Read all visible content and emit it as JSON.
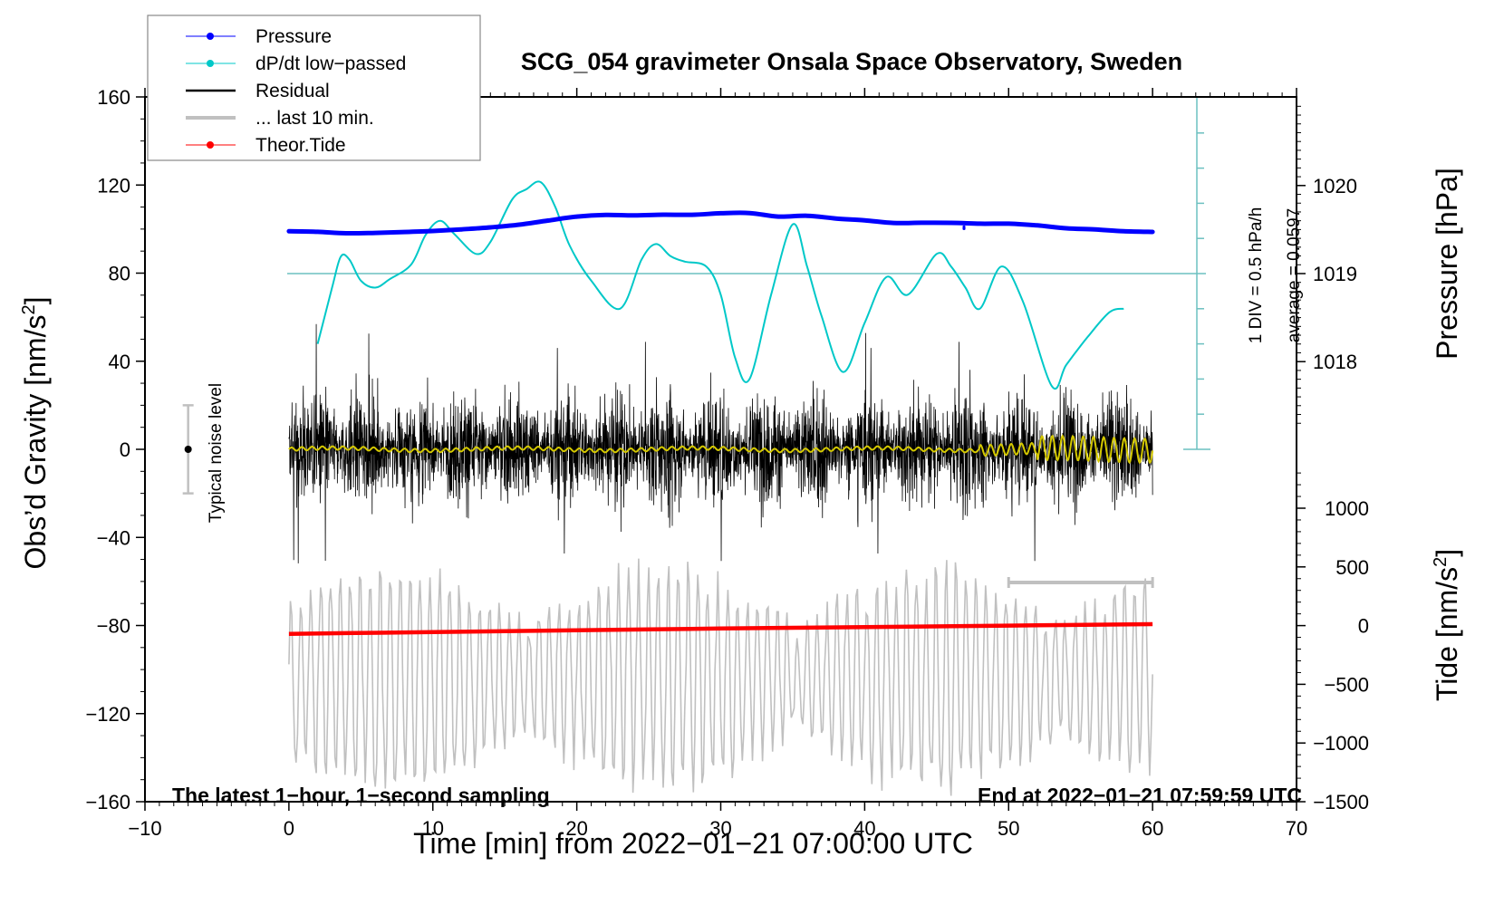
{
  "chart_data": {
    "type": "line",
    "title": "SCG_054 gravimeter Onsala Space Observatory, Sweden",
    "xlabel": "Time [min] from 2022−01−21 07:00:00 UTC",
    "ylabel_left": "Obs’d Gravity [nm/s²]",
    "ylabel_right_top": "Pressure [hPa]",
    "ylabel_right_bottom": "Tide [nm/s²]",
    "xlim": [
      -10,
      70
    ],
    "ylim_left": [
      -160,
      160
    ],
    "ylim_pressure": [
      1017.3,
      1021.0
    ],
    "ylim_tide": [
      -1500,
      1500
    ],
    "x_ticks": [
      "−10",
      "0",
      "10",
      "20",
      "30",
      "40",
      "50",
      "60",
      "70"
    ],
    "x_tick_values": [
      -10,
      0,
      10,
      20,
      30,
      40,
      50,
      60,
      70
    ],
    "y_left_ticks": [
      "160",
      "120",
      "80",
      "40",
      "0",
      "−40",
      "−80",
      "−120",
      "−160"
    ],
    "y_left_tick_values": [
      160,
      120,
      80,
      40,
      0,
      -40,
      -80,
      -120,
      -160
    ],
    "y_pressure_ticks": [
      "1020",
      "1019",
      "1018"
    ],
    "y_pressure_tick_values": [
      1020,
      1019,
      1018
    ],
    "y_tide_ticks": [
      "1000",
      "500",
      "0",
      "−500",
      "−1000",
      "−1500"
    ],
    "y_tide_tick_values": [
      1000,
      500,
      0,
      -500,
      -1000,
      -1500
    ],
    "legend": {
      "placement": "top-left",
      "entries": [
        {
          "label": "Pressure",
          "color": "#0000ff",
          "style": "line-dot"
        },
        {
          "label": "dP/dt low−passed",
          "color": "#00c8c8",
          "style": "line-dot"
        },
        {
          "label": "Residual",
          "color": "#000000",
          "style": "line"
        },
        {
          "label": "... last 10 min.",
          "color": "#c0c0c0",
          "style": "line"
        },
        {
          "label": "Theor.Tide",
          "color": "#ff0000",
          "style": "line-dot"
        }
      ]
    },
    "annotations": {
      "bottom_left": "The latest 1−hour, 1−second sampling",
      "bottom_right": "End at 2022−01−21 07:59:59 UTC",
      "noise_label": "Typical noise level",
      "noise_level": {
        "x": -7,
        "center": 0,
        "half_range": 20
      },
      "dpdt_scale": "1 DIV = 0.5 hPa/h",
      "dpdt_average": "average = 0.0597"
    },
    "dpdt_axis": {
      "div_hPa_per_h": 0.5,
      "zero_pressure_equiv": 1019,
      "divisions_above": 5,
      "divisions_below": 5
    },
    "series": [
      {
        "name": "Pressure",
        "axis": "pressure",
        "color": "#0000ff",
        "x": [
          0,
          2,
          4,
          6,
          8,
          10,
          12,
          14,
          16,
          18,
          20,
          22,
          24,
          26,
          28,
          30,
          32,
          34,
          36,
          38,
          40,
          42,
          44,
          46,
          48,
          50,
          52,
          54,
          56,
          58,
          60
        ],
        "y": [
          1019.48,
          1019.48,
          1019.45,
          1019.46,
          1019.47,
          1019.48,
          1019.5,
          1019.53,
          1019.56,
          1019.6,
          1019.65,
          1019.66,
          1019.66,
          1019.67,
          1019.67,
          1019.68,
          1019.68,
          1019.64,
          1019.66,
          1019.63,
          1019.61,
          1019.58,
          1019.57,
          1019.58,
          1019.57,
          1019.57,
          1019.55,
          1019.52,
          1019.5,
          1019.48,
          1019.47
        ]
      },
      {
        "name": "dP/dt low-passed",
        "axis": "dpdt",
        "color": "#00c8c8",
        "x": [
          2,
          3,
          3.6,
          4.2,
          5,
          6,
          7,
          8.5,
          9.5,
          10.5,
          11.5,
          13,
          14,
          15.5,
          16.5,
          17.5,
          18.5,
          19.5,
          21,
          23,
          24.5,
          25.5,
          26.5,
          27.5,
          29,
          30,
          31,
          32,
          33.5,
          35,
          36,
          37,
          38.5,
          40,
          41.5,
          43,
          45,
          46,
          47,
          48,
          49.5,
          51,
          53,
          54,
          55.5,
          57,
          58
        ],
        "y": [
          -1.0,
          -0.2,
          0.24,
          0.2,
          -0.1,
          -0.2,
          -0.08,
          0.13,
          0.55,
          0.75,
          0.56,
          0.28,
          0.45,
          1.05,
          1.2,
          1.3,
          0.95,
          0.4,
          -0.1,
          -0.5,
          0.2,
          0.42,
          0.25,
          0.17,
          0.1,
          -0.3,
          -1.2,
          -1.5,
          -0.3,
          0.7,
          0.1,
          -0.6,
          -1.4,
          -0.7,
          -0.05,
          -0.3,
          0.28,
          0.1,
          -0.2,
          -0.5,
          0.1,
          -0.4,
          -1.6,
          -1.3,
          -0.9,
          -0.55,
          -0.5
        ]
      },
      {
        "name": "Residual",
        "axis": "left",
        "color": "#000000",
        "note": "noisy 1-second residual, envelope approx ±30 nm/s² with spikes to about ±70",
        "envelope": {
          "typical_amplitude": 25,
          "max_positive": 70,
          "min_negative": -67
        }
      },
      {
        "name": "Residual smoothed",
        "axis": "left",
        "color": "#d4c800",
        "note": "near zero, oscillation grows to about ±7 after minute 50"
      },
      {
        "name": "... last 10 min.",
        "axis": "tide",
        "color": "#c0c0c0",
        "note": "last 10 min of residual stretched over full hour, scale bar spans minutes 50-60",
        "scale_bar_minutes": [
          50,
          60
        ],
        "amplitude_range": [
          -1500,
          500
        ]
      },
      {
        "name": "Theor.Tide",
        "axis": "tide",
        "color": "#ff0000",
        "x": [
          0,
          10,
          20,
          30,
          40,
          50,
          60
        ],
        "y": [
          -70,
          -55,
          -40,
          -25,
          -12,
          0,
          12
        ]
      }
    ]
  }
}
